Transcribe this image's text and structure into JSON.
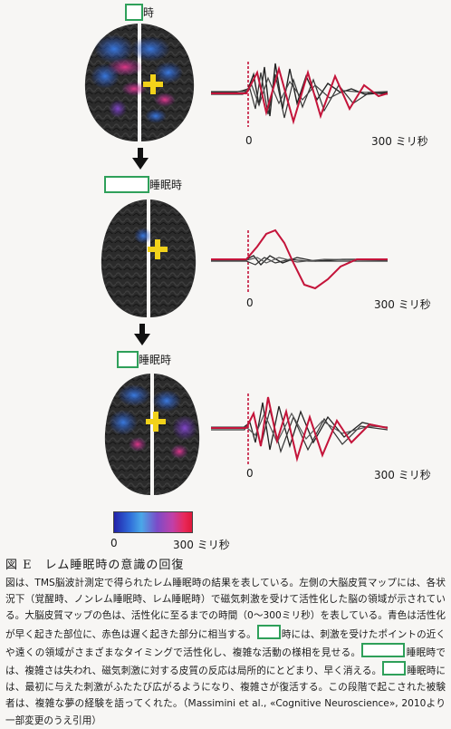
{
  "panels": [
    {
      "label_suffix": "時",
      "zero_label": "0",
      "ms_label": "300 ミリ秒"
    },
    {
      "label_suffix": "睡眠時",
      "zero_label": "0",
      "ms_label": "300 ミリ秒"
    },
    {
      "label_suffix": "睡眠時",
      "zero_label": "0",
      "ms_label": "300 ミリ秒"
    }
  ],
  "colorbar": {
    "min_label": "0",
    "max_label": "300 ミリ秒"
  },
  "figure_title": "図 E　レム睡眠時の意識の回復",
  "caption": {
    "p1": "図は、TMS脳波計測定で得られたレム睡眠時の結果を表している。左側の大脳皮質マップには、各状況下（覚醒時、ノンレム睡眠時、レム睡眠時）で磁気刺激を受けて活性化した脳の領域が示されている。大脳皮質マップの色は、活性化に至るまでの時間（0〜300ミリ秒）を表している。青色は活性化が早く起きた部位に、赤色は遅く起きた部分に相当する。",
    "p2": "時には、刺激を受けたポイントの近くや遠くの領域がさまざまなタイミングで活性化し、複雑な活動の様相を見せる。",
    "p3": "睡眠時では、複雑さは失われ、磁気刺激に対する皮質の反応は局所的にとどまり、早く消える。",
    "p4": "睡眠時には、最初に与えた刺激がふたたび広がるようになり、複雑さが復活する。この段階で起こされた被験者は、複雑な夢の経験を語ってくれた。（Massimini et al., «Cognitive Neuroscience», 2010より一部変更のうえ引用）"
  }
}
